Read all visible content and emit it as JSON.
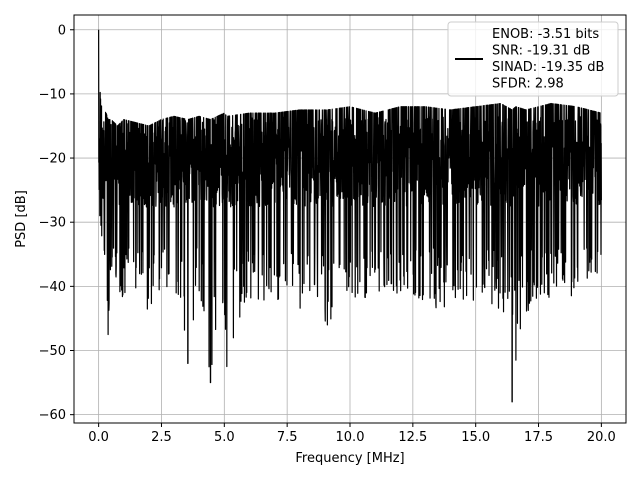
{
  "chart_data": {
    "type": "line",
    "title": "",
    "xlabel": "Frequency [MHz]",
    "ylabel": "PSD [dB]",
    "xlim": [
      -0.98,
      20.98
    ],
    "ylim": [
      -61.3,
      2.3
    ],
    "xticks": [
      0.0,
      2.5,
      5.0,
      7.5,
      10.0,
      12.5,
      15.0,
      17.5,
      20.0
    ],
    "xtick_labels": [
      "0.0",
      "2.5",
      "5.0",
      "7.5",
      "10.0",
      "12.5",
      "15.0",
      "17.5",
      "20.0"
    ],
    "yticks": [
      0,
      -10,
      -20,
      -30,
      -40,
      -50,
      -60
    ],
    "ytick_labels": [
      "0",
      "−10",
      "−20",
      "−30",
      "−40",
      "−50",
      "−60"
    ],
    "grid": true,
    "legend_position": "top-right",
    "series": [
      {
        "name": "ENOB: -3.51 bits\nSNR: -19.31 dB\nSINAD: -19.35 dB\nSFDR: 2.98",
        "color": "#000000",
        "peaks": {
          "x": [
            0.0,
            0.02,
            0.05,
            0.08,
            0.12,
            0.3,
            0.38,
            0.5,
            0.75,
            1.0,
            1.5,
            2.0,
            2.5,
            3.0,
            3.55,
            4.0,
            4.45,
            5.0,
            5.1,
            6.0,
            7.0,
            8.0,
            9.1,
            10.0,
            11.0,
            12.0,
            13.0,
            14.0,
            15.0,
            16.0,
            16.45,
            16.6,
            17.0,
            18.0,
            19.0,
            20.0
          ],
          "upper": [
            0.0,
            -7.0,
            -9.0,
            -11.0,
            -12.0,
            -13.0,
            -14.0,
            -14.0,
            -15.0,
            -14.0,
            -14.5,
            -15.0,
            -14.0,
            -13.5,
            -14.0,
            -13.5,
            -14.0,
            -13.0,
            -13.5,
            -13.0,
            -13.0,
            -12.5,
            -12.5,
            -12.0,
            -13.0,
            -12.0,
            -12.0,
            -12.5,
            -12.0,
            -11.5,
            -12.5,
            -12.0,
            -12.5,
            -11.5,
            -12.0,
            -13.0
          ],
          "lower": [
            -20.0,
            -25.0,
            -30.0,
            -32.0,
            -33.0,
            -40.0,
            -47.5,
            -38.0,
            -40.0,
            -43.0,
            -42.0,
            -44.0,
            -42.0,
            -40.0,
            -52.0,
            -42.0,
            -55.0,
            -43.0,
            -52.5,
            -42.0,
            -43.0,
            -44.0,
            -46.0,
            -42.0,
            -42.0,
            -41.0,
            -43.0,
            -44.0,
            -42.0,
            -44.0,
            -58.0,
            -51.5,
            -44.0,
            -44.0,
            -42.0,
            -38.0
          ]
        }
      }
    ]
  }
}
